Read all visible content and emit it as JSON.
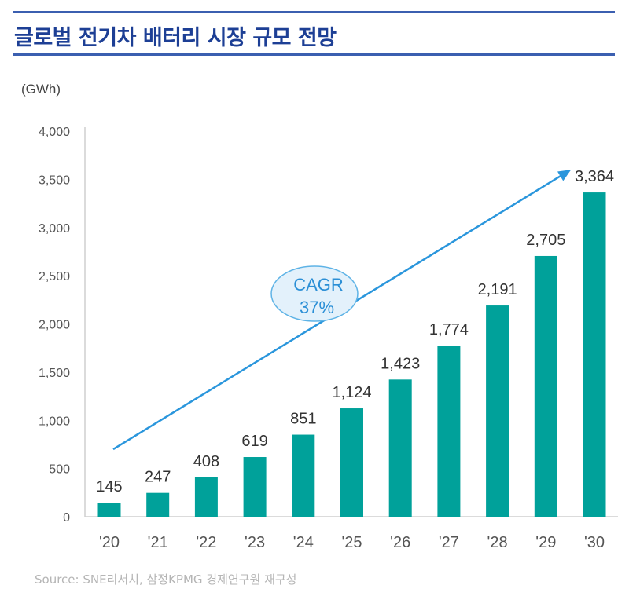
{
  "header": {
    "title": "글로벌 전기차 배터리 시장 규모 전망"
  },
  "footer": {
    "source": "Source: SNE리서치, 삼정KPMG 경제연구원 재구성"
  },
  "colors": {
    "bar": "#00a19a",
    "title": "#1d3f95",
    "rule": "#3b5fb0",
    "arrow": "#2a96dc",
    "ellipse_fill": "#e3f1fb",
    "ellipse_stroke": "#5eb3e6"
  },
  "chart_data": {
    "type": "bar",
    "title": "글로벌 전기차 배터리 시장 규모 전망",
    "ylabel": "(GWh)",
    "xlabel": "",
    "categories": [
      "'20",
      "'21",
      "'22",
      "'23",
      "'24",
      "'25",
      "'26",
      "'27",
      "'28",
      "'29",
      "'30"
    ],
    "values": [
      145,
      247,
      408,
      619,
      851,
      1124,
      1423,
      1774,
      2191,
      2705,
      3364
    ],
    "value_labels": [
      "145",
      "247",
      "408",
      "619",
      "851",
      "1,124",
      "1,423",
      "1,774",
      "2,191",
      "2,705",
      "3,364"
    ],
    "ylim": [
      0,
      4000
    ],
    "yticks": [
      0,
      500,
      1000,
      1500,
      2000,
      2500,
      3000,
      3500,
      4000
    ],
    "ytick_labels": [
      "0",
      "500",
      "1,000",
      "1,500",
      "2,000",
      "2,500",
      "3,000",
      "3,500",
      "4,000"
    ],
    "grid": false,
    "legend": "none",
    "annotation": {
      "type": "arrow",
      "label_line1": "CAGR",
      "label_line2": "37%",
      "from_category": "'20",
      "from_value": 700,
      "to_category": "'29",
      "to_value": 3600
    }
  }
}
